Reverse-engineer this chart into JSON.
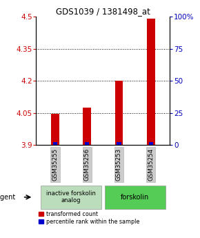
{
  "title": "GDS1039 / 1381498_at",
  "samples": [
    "GSM35255",
    "GSM35256",
    "GSM35253",
    "GSM35254"
  ],
  "red_values": [
    4.045,
    4.075,
    4.2,
    4.49
  ],
  "blue_values": [
    3.915,
    3.907,
    3.918,
    3.925
  ],
  "ymin": 3.9,
  "ymax": 4.5,
  "yticks_left": [
    3.9,
    4.05,
    4.2,
    4.35,
    4.5
  ],
  "yticks_right": [
    0,
    25,
    50,
    75,
    100
  ],
  "bar_base": 3.9,
  "bar_width": 0.25,
  "red_color": "#cc0000",
  "blue_color": "#0000cc",
  "title_color": "#000000",
  "left_tick_color": "#cc0000",
  "right_tick_color": "#0000bb",
  "agent_label": "agent",
  "group1_label": "inactive forskolin\nanalog",
  "group2_label": "forskolin",
  "group1_samples": [
    0,
    1
  ],
  "group2_samples": [
    2,
    3
  ],
  "legend_red": "transformed count",
  "legend_blue": "percentile rank within the sample",
  "sample_box_color": "#cccccc",
  "group1_color": "#bbddbb",
  "group2_color": "#55cc55"
}
